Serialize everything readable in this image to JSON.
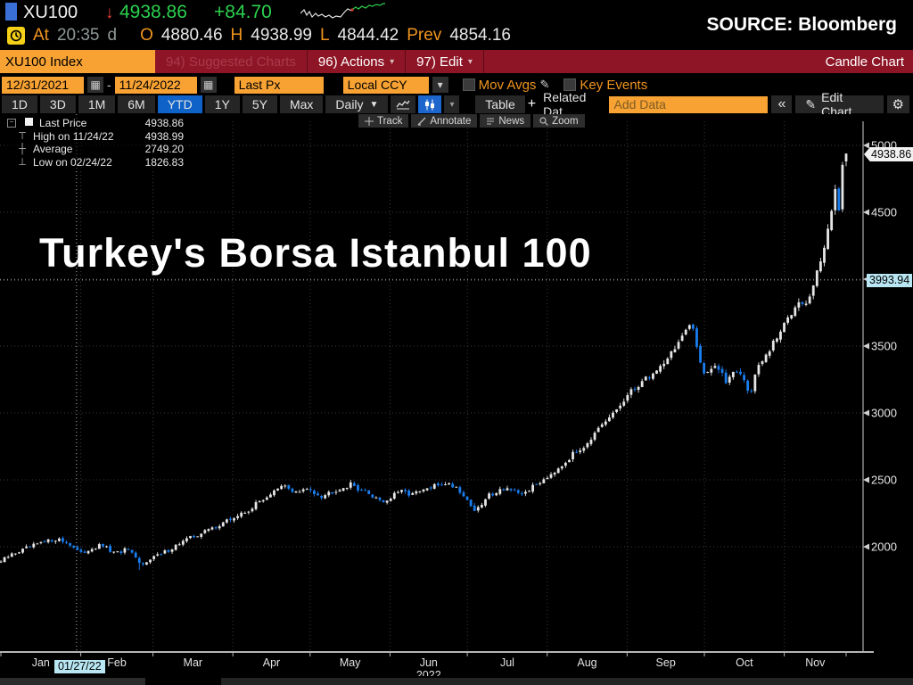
{
  "header": {
    "ticker": "XU100",
    "price_arrow": "↓",
    "last_price": "4938.86",
    "change": "+84.70",
    "source_label": "SOURCE: Bloomberg",
    "session": {
      "at_label": "At",
      "time": "20:35",
      "suffix": "d",
      "open_label": "O",
      "open": "4880.46",
      "high_label": "H",
      "high": "4938.99",
      "low_label": "L",
      "low": "4844.42",
      "prev_label": "Prev",
      "prev": "4854.16"
    }
  },
  "menubar": {
    "security_box": "XU100 Index",
    "items": [
      {
        "label": "94) Suggested Charts",
        "state": "disabled"
      },
      {
        "label": "96) Actions",
        "caret": "▾"
      },
      {
        "label": "97) Edit",
        "caret": "▾"
      }
    ],
    "right_label": "Candle Chart"
  },
  "toolbar": {
    "date_from": "12/31/2021",
    "date_sep": "-",
    "date_to": "11/24/2022",
    "price_field": "Last Px",
    "currency": "Local CCY",
    "mov_avgs": "Mov Avgs",
    "key_events": "Key Events",
    "calendar_icon": "▦",
    "pencil_icon": "✎",
    "dropdown_icon": "▾"
  },
  "tabsbar": {
    "ranges": [
      "1D",
      "3D",
      "1M",
      "6M",
      "YTD",
      "1Y",
      "5Y",
      "Max"
    ],
    "active_range": "YTD",
    "frequency": "Daily",
    "frequency_caret": "▼",
    "chart_type_caret": "▾",
    "table_label": "Table",
    "related_plus": "+",
    "related_data": "Related Dat",
    "add_data_placeholder": "Add Data",
    "collapse": "«",
    "edit_pencil": "✎",
    "edit_chart": "Edit Chart",
    "gear": "⚙"
  },
  "chart": {
    "toolbar": [
      "Track",
      "Annotate",
      "News",
      "Zoom"
    ],
    "legend": [
      {
        "label": "Last Price",
        "value": "4938.86"
      },
      {
        "label": "High on 11/24/22",
        "value": "4938.99"
      },
      {
        "label": "Average",
        "value": "2749.20"
      },
      {
        "label": "Low on 02/24/22",
        "value": "1826.83"
      }
    ],
    "title": "Turkey's Borsa Istanbul 100",
    "last_price_badge": "4938.86",
    "crosshair_y_badge": "3993.94",
    "crosshair_x_badge": "01/27/22",
    "year_label": "2022"
  },
  "chart_data": {
    "type": "candlestick",
    "symbol": "XU100 Index",
    "title": "Turkey's Borsa Istanbul 100",
    "period": "12/31/2021 - 11/24/2022",
    "frequency": "Daily",
    "last": 4938.86,
    "change": 84.7,
    "open": 4880.46,
    "high": 4938.99,
    "low": 4844.42,
    "prev_close": 4854.16,
    "high_on": "11/24/22",
    "high_value": 4938.99,
    "low_on": "02/24/22",
    "low_value": 1826.83,
    "average": 2749.2,
    "y_gridlines": [
      2000,
      2500,
      3000,
      3500,
      4000,
      4500,
      5000
    ],
    "x_months": [
      "Jan",
      "Feb",
      "Mar",
      "Apr",
      "May",
      "Jun",
      "Jul",
      "Aug",
      "Sep",
      "Oct",
      "Nov"
    ],
    "month_days": [
      31,
      28,
      31,
      30,
      31,
      30,
      31,
      31,
      30,
      31,
      24
    ],
    "crosshair": {
      "t": 0.0895,
      "value": 3993.94,
      "date": "01/27/22"
    },
    "anchors": [
      [
        0.0,
        1890
      ],
      [
        0.015,
        1950
      ],
      [
        0.04,
        2010
      ],
      [
        0.065,
        2060
      ],
      [
        0.08,
        2030
      ],
      [
        0.095,
        1945
      ],
      [
        0.105,
        1985
      ],
      [
        0.12,
        2010
      ],
      [
        0.135,
        1945
      ],
      [
        0.15,
        1985
      ],
      [
        0.16,
        1900
      ],
      [
        0.167,
        1855
      ],
      [
        0.175,
        1915
      ],
      [
        0.19,
        1945
      ],
      [
        0.215,
        2040
      ],
      [
        0.24,
        2110
      ],
      [
        0.265,
        2185
      ],
      [
        0.29,
        2260
      ],
      [
        0.315,
        2380
      ],
      [
        0.335,
        2455
      ],
      [
        0.35,
        2405
      ],
      [
        0.365,
        2430
      ],
      [
        0.38,
        2380
      ],
      [
        0.395,
        2425
      ],
      [
        0.415,
        2465
      ],
      [
        0.435,
        2395
      ],
      [
        0.455,
        2335
      ],
      [
        0.47,
        2410
      ],
      [
        0.49,
        2395
      ],
      [
        0.51,
        2445
      ],
      [
        0.525,
        2480
      ],
      [
        0.54,
        2445
      ],
      [
        0.552,
        2345
      ],
      [
        0.562,
        2260
      ],
      [
        0.578,
        2390
      ],
      [
        0.598,
        2445
      ],
      [
        0.613,
        2380
      ],
      [
        0.63,
        2450
      ],
      [
        0.65,
        2545
      ],
      [
        0.668,
        2640
      ],
      [
        0.69,
        2760
      ],
      [
        0.712,
        2900
      ],
      [
        0.733,
        3060
      ],
      [
        0.755,
        3220
      ],
      [
        0.775,
        3310
      ],
      [
        0.793,
        3450
      ],
      [
        0.808,
        3590
      ],
      [
        0.818,
        3650
      ],
      [
        0.824,
        3480
      ],
      [
        0.832,
        3300
      ],
      [
        0.845,
        3360
      ],
      [
        0.858,
        3230
      ],
      [
        0.868,
        3340
      ],
      [
        0.878,
        3270
      ],
      [
        0.886,
        3120
      ],
      [
        0.893,
        3310
      ],
      [
        0.905,
        3420
      ],
      [
        0.92,
        3580
      ],
      [
        0.933,
        3730
      ],
      [
        0.945,
        3870
      ],
      [
        0.953,
        3800
      ],
      [
        0.96,
        3930
      ],
      [
        0.966,
        4050
      ],
      [
        0.973,
        4220
      ],
      [
        0.98,
        4420
      ],
      [
        0.984,
        4560
      ],
      [
        0.988,
        4660
      ],
      [
        0.991,
        4480
      ],
      [
        0.9945,
        4560
      ],
      [
        0.997,
        4750
      ],
      [
        1.0,
        4938.86
      ]
    ],
    "colors": {
      "up_candle": "#e6e6e6",
      "down_candle": "#1a7ef0",
      "grid": "#3a3a3a",
      "axis": "#b5b5b5",
      "accent_orange": "#f7a233",
      "menubar_red": "#8d1526",
      "active_blue": "#0f63c8",
      "price_green": "#2bd14e",
      "crosshair_badge": "#b8e6f2"
    }
  }
}
